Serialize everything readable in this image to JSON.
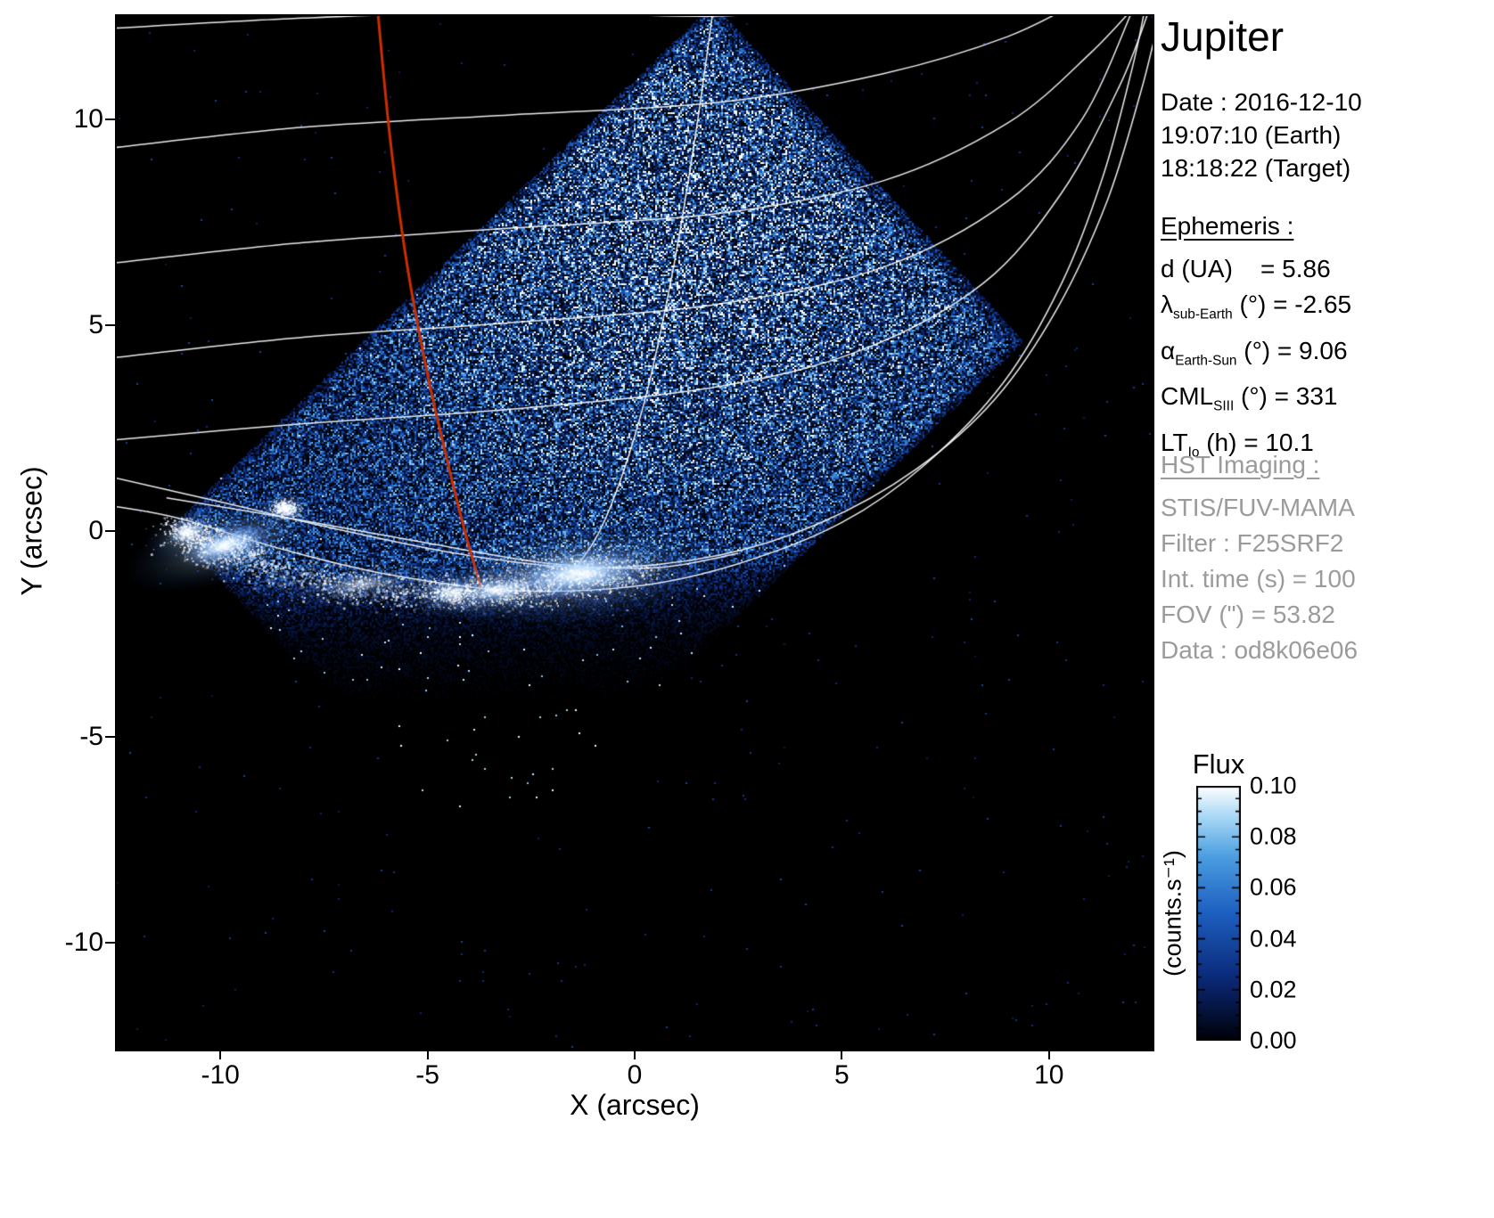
{
  "title": "Jupiter",
  "observation": {
    "date": "Date : 2016-12-10",
    "time_earth": "19:07:10 (Earth)",
    "time_target": "18:18:22 (Target)"
  },
  "ephemeris": {
    "heading": "Ephemeris :",
    "rows": [
      {
        "segments": [
          {
            "text": "d (UA)    = 5.86"
          }
        ]
      },
      {
        "segments": [
          {
            "text": "λ"
          },
          {
            "text": "sub-Earth",
            "sub": true
          },
          {
            "text": " (°) = -2.65"
          }
        ]
      },
      {
        "segments": [
          {
            "text": "α"
          },
          {
            "text": "Earth-Sun",
            "sub": true
          },
          {
            "text": " (°) = 9.06"
          }
        ]
      },
      {
        "segments": [
          {
            "text": "CML"
          },
          {
            "text": "SIII",
            "sub": true
          },
          {
            "text": " (°) = 331"
          }
        ]
      },
      {
        "segments": [
          {
            "text": "LT"
          },
          {
            "text": "Io",
            "sub": true
          },
          {
            "text": " (h) = 10.1"
          }
        ]
      }
    ]
  },
  "hst": {
    "heading": "HST Imaging :",
    "rows": [
      "STIS/FUV-MAMA",
      "Filter : F25SRF2",
      "Int. time (s) = 100",
      "FOV (\") = 53.82",
      "Data : od8k06e06"
    ]
  },
  "colorbar": {
    "title": "Flux",
    "unit": "(counts.s⁻¹)",
    "tick_values": [
      0.1,
      0.08,
      0.06,
      0.04,
      0.02,
      0.0
    ],
    "tick_labels": [
      "0.10",
      "0.08",
      "0.06",
      "0.04",
      "0.02",
      "0.00"
    ],
    "min": 0.0,
    "max": 0.1
  },
  "chart_data": {
    "type": "heatmap",
    "title": "Jupiter",
    "xlabel": "X (arcsec)",
    "ylabel": "Y (arcsec)",
    "xlim": [
      -12.5,
      12.5
    ],
    "ylim": [
      -12.6,
      12.5
    ],
    "xticks": [
      -10,
      -5,
      0,
      5,
      10
    ],
    "xtick_labels": [
      "-10",
      "-5",
      "0",
      "5",
      "10"
    ],
    "yticks": [
      10,
      5,
      0,
      -5,
      -10
    ],
    "ytick_labels": [
      "10",
      "5",
      "0",
      "-5",
      "-10"
    ],
    "flux_range_counts_per_s": [
      0.0,
      0.1
    ],
    "colormap": [
      [
        0,
        "#000006"
      ],
      [
        0.25,
        "#0b2a7a"
      ],
      [
        0.5,
        "#1d5fc0"
      ],
      [
        0.72,
        "#4a9de0"
      ],
      [
        0.88,
        "#a9d9f6"
      ],
      [
        1,
        "#ffffff"
      ]
    ],
    "detector_fov_corners": [
      [
        -11.2,
        0.1
      ],
      [
        1.9,
        12.8
      ],
      [
        9.4,
        4.6
      ],
      [
        -3.7,
        -8.1
      ]
    ],
    "noise_fade_line": [
      -0.55,
      0.05
    ],
    "graticule_color": "#ffffff",
    "graticule": [
      [
        [
          -12.6,
          12.2
        ],
        [
          -8,
          12.45
        ],
        [
          -3,
          12.6
        ],
        [
          2,
          12.5
        ],
        [
          6,
          12.8
        ]
      ],
      [
        [
          -12.6,
          9.3
        ],
        [
          -8,
          9.8
        ],
        [
          -3,
          10.1
        ],
        [
          2,
          10.4
        ],
        [
          6,
          11.1
        ],
        [
          9,
          12.0
        ],
        [
          11,
          13.0
        ]
      ],
      [
        [
          -12.6,
          6.5
        ],
        [
          -8,
          7.0
        ],
        [
          -3,
          7.35
        ],
        [
          2,
          7.7
        ],
        [
          6,
          8.5
        ],
        [
          9,
          9.9
        ],
        [
          11,
          11.6
        ],
        [
          12.3,
          13.0
        ]
      ],
      [
        [
          -12.6,
          4.2
        ],
        [
          -8,
          4.7
        ],
        [
          -3,
          5.05
        ],
        [
          2,
          5.5
        ],
        [
          6,
          6.4
        ],
        [
          9,
          8.0
        ],
        [
          10.8,
          10.0
        ],
        [
          12.0,
          12.6
        ]
      ],
      [
        [
          -12.6,
          2.2
        ],
        [
          -8,
          2.6
        ],
        [
          -3,
          2.95
        ],
        [
          2,
          3.5
        ],
        [
          5.5,
          4.4
        ],
        [
          8.4,
          6.0
        ],
        [
          10.3,
          8.2
        ],
        [
          11.7,
          10.8
        ],
        [
          12.4,
          12.6
        ]
      ],
      [
        [
          -12.6,
          1.3
        ],
        [
          -10,
          0.7
        ],
        [
          -7,
          0.0
        ],
        [
          -4,
          -0.6
        ],
        [
          -1,
          -0.9
        ],
        [
          2,
          -0.6
        ],
        [
          4.5,
          0.2
        ],
        [
          6.8,
          1.5
        ],
        [
          8.7,
          3.2
        ],
        [
          10.2,
          5.4
        ],
        [
          11.4,
          8.0
        ],
        [
          12.2,
          10.6
        ],
        [
          12.6,
          12.2
        ]
      ],
      [
        [
          -12.6,
          0.6
        ],
        [
          -11,
          0.3
        ],
        [
          -8.5,
          -0.45
        ],
        [
          -6,
          -1.05
        ],
        [
          -3,
          -1.45
        ],
        [
          0,
          -1.35
        ],
        [
          2.5,
          -0.8
        ],
        [
          5,
          0.2
        ],
        [
          7,
          1.6
        ],
        [
          8.9,
          3.6
        ],
        [
          10.3,
          6.0
        ],
        [
          11.3,
          8.6
        ],
        [
          12.0,
          11.2
        ],
        [
          12.3,
          12.6
        ]
      ],
      [
        [
          -11.3,
          0.8
        ],
        [
          -8,
          0.25
        ],
        [
          -5,
          -0.3
        ],
        [
          -2,
          -0.8
        ],
        [
          0.5,
          -0.9
        ],
        [
          2.5,
          -0.55
        ]
      ],
      [
        [
          1.9,
          12.7
        ],
        [
          1.45,
          9.5
        ],
        [
          0.9,
          6.2
        ],
        [
          0.2,
          3.0
        ],
        [
          -0.7,
          0.3
        ],
        [
          -1.5,
          -1.0
        ],
        [
          -2.0,
          -1.55
        ]
      ]
    ],
    "io_track": {
      "color": "#cc2e00",
      "points": [
        [
          -6.2,
          12.6
        ],
        [
          -5.9,
          9.5
        ],
        [
          -5.5,
          6.5
        ],
        [
          -5.0,
          3.8
        ],
        [
          -4.5,
          1.6
        ],
        [
          -4.05,
          -0.2
        ],
        [
          -3.7,
          -1.4
        ]
      ]
    },
    "aurora": {
      "blobs": [
        {
          "x": -1.35,
          "y": -1.05,
          "rx": 1.7,
          "ry": 0.6,
          "rot": -6,
          "i": 1.0
        },
        {
          "x": -3.3,
          "y": -1.45,
          "rx": 1.0,
          "ry": 0.32,
          "rot": -8,
          "i": 0.75
        },
        {
          "x": -4.4,
          "y": -1.5,
          "rx": 0.6,
          "ry": 0.28,
          "rot": -5,
          "i": 0.65
        },
        {
          "x": -9.9,
          "y": -0.35,
          "rx": 1.15,
          "ry": 0.42,
          "rot": -17,
          "i": 0.95
        },
        {
          "x": -10.8,
          "y": -0.05,
          "rx": 0.5,
          "ry": 0.28,
          "rot": -20,
          "i": 0.8
        },
        {
          "x": -8.45,
          "y": 0.55,
          "rx": 0.3,
          "ry": 0.2,
          "rot": 0,
          "i": 0.75
        },
        {
          "x": -6.6,
          "y": -1.3,
          "rx": 1.3,
          "ry": 0.3,
          "rot": -6,
          "i": 0.3
        }
      ],
      "arc": [
        [
          -10.9,
          -0.05
        ],
        [
          -9.8,
          -0.55
        ],
        [
          -8.5,
          -1.0
        ],
        [
          -7,
          -1.3
        ],
        [
          -5.5,
          -1.5
        ],
        [
          -4,
          -1.5
        ],
        [
          -2.6,
          -1.35
        ],
        [
          -1.3,
          -1.1
        ],
        [
          0.2,
          -0.95
        ]
      ]
    }
  }
}
